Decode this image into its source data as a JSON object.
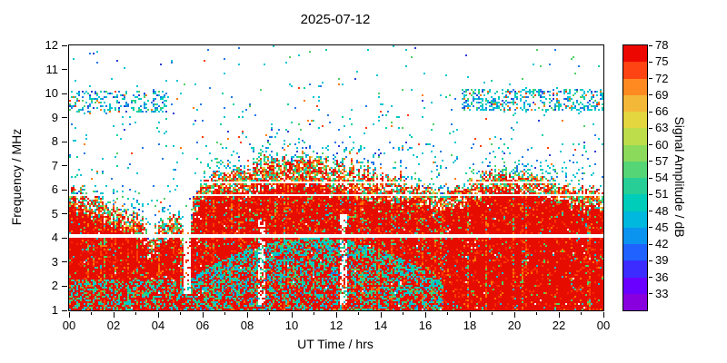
{
  "chart_data": {
    "type": "heatmap",
    "title": "2025-07-12",
    "xlabel": "UT Time / hrs",
    "ylabel": "Frequency / MHz",
    "colorbar_label": "Signal Amplitude / dB",
    "x_range": [
      0,
      24
    ],
    "y_range": [
      1,
      12
    ],
    "x_ticks": [
      {
        "t": 0,
        "label": "00"
      },
      {
        "t": 2,
        "label": "02"
      },
      {
        "t": 4,
        "label": "04"
      },
      {
        "t": 6,
        "label": "06"
      },
      {
        "t": 8,
        "label": "08"
      },
      {
        "t": 10,
        "label": "10"
      },
      {
        "t": 12,
        "label": "12"
      },
      {
        "t": 14,
        "label": "14"
      },
      {
        "t": 16,
        "label": "16"
      },
      {
        "t": 18,
        "label": "18"
      },
      {
        "t": 20,
        "label": "20"
      },
      {
        "t": 22,
        "label": "22"
      },
      {
        "t": 24,
        "label": "00"
      }
    ],
    "x_minor_ticks": [
      1,
      3,
      5,
      7,
      9,
      11,
      13,
      15,
      17,
      19,
      21,
      23
    ],
    "y_ticks": [
      1,
      2,
      3,
      4,
      5,
      6,
      7,
      8,
      9,
      10,
      11,
      12
    ],
    "colorbar_range": [
      30,
      78
    ],
    "colorbar_ticks": [
      78,
      75,
      72,
      69,
      66,
      63,
      60,
      57,
      54,
      51,
      48,
      45,
      42,
      39,
      36,
      33
    ],
    "palette_bottom_to_top": [
      "#8800dd",
      "#6a00ff",
      "#3c2cff",
      "#1f62ff",
      "#0b93f0",
      "#00b7dd",
      "#00ccba",
      "#27cf96",
      "#55d575",
      "#8cda5b",
      "#bedd4b",
      "#e3d63f",
      "#f4b838",
      "#ff8a22",
      "#ff4413",
      "#ec0800"
    ],
    "seed": 20250712,
    "colors": {
      "red": "#e60d00",
      "red2": "#f42800",
      "orangered": "#ff3c00",
      "orange": "#ff7a00",
      "yellow": "#e6d44a",
      "green": "#4fcf63",
      "teal": "#00d0a0",
      "cyan": "#00c4d4",
      "blue": "#1e78e6",
      "darkblue": "#2a3cd8",
      "purple": "#8800dd",
      "white": "#ffffff"
    },
    "f_top_envelope": [
      5.6,
      5.3,
      5.0,
      4.5,
      4.3,
      4.7,
      6.1,
      6.4,
      6.5,
      6.9,
      6.8,
      7.0,
      6.7,
      6.4,
      6.2,
      6.0,
      5.8,
      5.5,
      6.0,
      6.4,
      6.3,
      6.1,
      5.9,
      5.7,
      5.6
    ],
    "notches": [
      {
        "t": 3.7,
        "w": 0.3,
        "depth": 0.9
      },
      {
        "t": 5.3,
        "w": 0.25,
        "depth": 1.3
      }
    ],
    "e_layer_arc": {
      "t_start": 5.5,
      "t_end": 16.8,
      "peak_t": 11.0,
      "peak_f": 4.0,
      "curvature": 0.055
    },
    "dawn_mix": {
      "t_max": 5.5,
      "f_max": 2.3,
      "prob": 0.3
    },
    "white_lines": [
      {
        "f": 4.1,
        "half": 0.08
      },
      {
        "f": 5.78,
        "half": 0.04
      },
      {
        "f": 6.32,
        "half": 0.04
      }
    ],
    "gaps": [
      {
        "t": [
          5.15,
          5.5
        ],
        "f_min": 1.7,
        "f_max": 6.5,
        "strength": 0.8
      },
      {
        "t": [
          8.5,
          8.8
        ],
        "f_min": 1.2,
        "f_max": 4.8,
        "strength": 0.55
      },
      {
        "t": [
          12.15,
          12.5
        ],
        "f_min": 1.2,
        "f_max": 5.0,
        "strength": 0.55
      }
    ],
    "night_bands": [
      {
        "t": [
          0,
          4.4
        ],
        "f": [
          9.25,
          10.15
        ],
        "density": 0.28
      },
      {
        "t": [
          17.6,
          24
        ],
        "f": [
          9.3,
          10.2
        ],
        "density": 0.36
      }
    ],
    "speckle": {
      "base_density": 0.022,
      "edge_density": 0.5,
      "decay": 0.5,
      "high_freq_factor": 0.35,
      "spike_density": 0.2,
      "spike_decay": 1.5
    }
  }
}
